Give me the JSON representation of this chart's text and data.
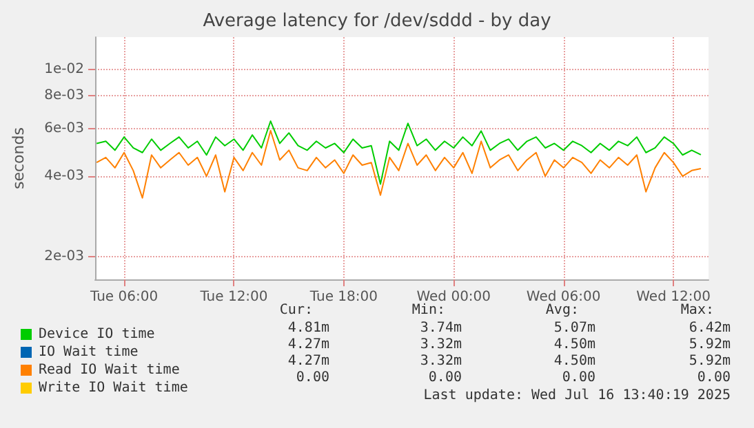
{
  "chart_data": {
    "type": "line",
    "title": "Average latency for /dev/sddd - by day",
    "ylabel": "seconds",
    "x": [
      "2025-07-15T04:30",
      "2025-07-15T05:00",
      "2025-07-15T05:30",
      "2025-07-15T06:00",
      "2025-07-15T06:30",
      "2025-07-15T07:00",
      "2025-07-15T07:30",
      "2025-07-15T08:00",
      "2025-07-15T08:30",
      "2025-07-15T09:00",
      "2025-07-15T09:30",
      "2025-07-15T10:00",
      "2025-07-15T10:30",
      "2025-07-15T11:00",
      "2025-07-15T11:30",
      "2025-07-15T12:00",
      "2025-07-15T12:30",
      "2025-07-15T13:00",
      "2025-07-15T13:30",
      "2025-07-15T14:00",
      "2025-07-15T14:30",
      "2025-07-15T15:00",
      "2025-07-15T15:30",
      "2025-07-15T16:00",
      "2025-07-15T16:30",
      "2025-07-15T17:00",
      "2025-07-15T17:30",
      "2025-07-15T18:00",
      "2025-07-15T18:30",
      "2025-07-15T19:00",
      "2025-07-15T19:30",
      "2025-07-15T20:00",
      "2025-07-15T20:30",
      "2025-07-15T21:00",
      "2025-07-15T21:30",
      "2025-07-15T22:00",
      "2025-07-15T22:30",
      "2025-07-15T23:00",
      "2025-07-15T23:30",
      "2025-07-16T00:00",
      "2025-07-16T00:30",
      "2025-07-16T01:00",
      "2025-07-16T01:30",
      "2025-07-16T02:00",
      "2025-07-16T02:30",
      "2025-07-16T03:00",
      "2025-07-16T03:30",
      "2025-07-16T04:00",
      "2025-07-16T04:30",
      "2025-07-16T05:00",
      "2025-07-16T05:30",
      "2025-07-16T06:00",
      "2025-07-16T06:30",
      "2025-07-16T07:00",
      "2025-07-16T07:30",
      "2025-07-16T08:00",
      "2025-07-16T08:30",
      "2025-07-16T09:00",
      "2025-07-16T09:30",
      "2025-07-16T10:00",
      "2025-07-16T10:30",
      "2025-07-16T11:00",
      "2025-07-16T11:30",
      "2025-07-16T12:00",
      "2025-07-16T12:30",
      "2025-07-16T13:00",
      "2025-07-16T13:30"
    ],
    "series": [
      {
        "name": "Device IO time",
        "color": "#00cc00",
        "values": [
          0.0053,
          0.0054,
          0.005,
          0.0056,
          0.0051,
          0.0049,
          0.0055,
          0.005,
          0.0053,
          0.0056,
          0.0051,
          0.0054,
          0.0048,
          0.0056,
          0.0052,
          0.0055,
          0.005,
          0.0057,
          0.0051,
          0.00642,
          0.0053,
          0.0058,
          0.0052,
          0.005,
          0.0054,
          0.0051,
          0.0053,
          0.0049,
          0.0055,
          0.0051,
          0.0052,
          0.00374,
          0.0054,
          0.005,
          0.0063,
          0.0052,
          0.0055,
          0.005,
          0.0054,
          0.0051,
          0.0056,
          0.0052,
          0.0059,
          0.005,
          0.0053,
          0.0055,
          0.005,
          0.0054,
          0.0056,
          0.0051,
          0.0053,
          0.005,
          0.0054,
          0.0052,
          0.0049,
          0.0053,
          0.005,
          0.0054,
          0.0052,
          0.0056,
          0.0049,
          0.0051,
          0.0056,
          0.0053,
          0.0048,
          0.005,
          0.00481
        ]
      },
      {
        "name": "IO Wait time",
        "color": "#0066b3",
        "values": [
          null,
          null,
          null,
          null,
          null,
          null,
          null,
          null,
          null,
          null,
          null,
          null,
          null,
          null,
          null,
          null,
          null,
          null,
          null,
          null,
          null,
          null,
          null,
          null,
          null,
          null,
          null,
          null,
          null,
          null,
          null,
          null,
          null,
          null,
          null,
          null,
          null,
          null,
          null,
          null,
          null,
          null,
          null,
          null,
          null,
          null,
          null,
          null,
          null,
          null,
          null,
          null,
          null,
          null,
          null,
          null,
          null,
          null,
          null,
          null,
          null,
          null,
          null,
          null,
          null,
          null,
          null
        ]
      },
      {
        "name": "Read IO Wait time",
        "color": "#ff8000",
        "values": [
          0.0045,
          0.0047,
          0.0043,
          0.0049,
          0.0042,
          0.00332,
          0.0048,
          0.0043,
          0.0046,
          0.0049,
          0.0044,
          0.0047,
          0.004,
          0.0048,
          0.0035,
          0.0047,
          0.0042,
          0.0049,
          0.0044,
          0.00592,
          0.0046,
          0.005,
          0.0043,
          0.0042,
          0.0047,
          0.0043,
          0.0046,
          0.0041,
          0.0048,
          0.0044,
          0.0045,
          0.0034,
          0.0047,
          0.0042,
          0.0053,
          0.0044,
          0.0048,
          0.0042,
          0.0047,
          0.0043,
          0.0049,
          0.0041,
          0.0054,
          0.0043,
          0.0046,
          0.0048,
          0.0042,
          0.0046,
          0.0049,
          0.004,
          0.0046,
          0.0043,
          0.0047,
          0.0045,
          0.0041,
          0.0046,
          0.0043,
          0.0047,
          0.0044,
          0.0048,
          0.0035,
          0.0043,
          0.0049,
          0.0045,
          0.004,
          0.0042,
          0.00427
        ]
      },
      {
        "name": "Write IO Wait time",
        "color": "#ffcc00",
        "values": [
          null,
          null,
          null,
          null,
          null,
          null,
          null,
          null,
          null,
          null,
          null,
          null,
          null,
          null,
          null,
          null,
          null,
          null,
          null,
          null,
          null,
          null,
          null,
          null,
          null,
          null,
          null,
          null,
          null,
          null,
          null,
          null,
          null,
          null,
          null,
          null,
          null,
          null,
          null,
          null,
          null,
          null,
          null,
          null,
          null,
          null,
          null,
          null,
          null,
          null,
          null,
          null,
          null,
          null,
          null,
          null,
          null,
          null,
          null,
          null,
          null,
          null,
          null,
          null,
          null,
          null,
          null
        ]
      }
    ],
    "xlim": [
      "2025-07-15T04:25",
      "2025-07-16T13:55"
    ],
    "xticks": [
      {
        "value": "2025-07-15T06:00",
        "label": "Tue 06:00"
      },
      {
        "value": "2025-07-15T12:00",
        "label": "Tue 12:00"
      },
      {
        "value": "2025-07-15T18:00",
        "label": "Tue 18:00"
      },
      {
        "value": "2025-07-16T00:00",
        "label": "Wed 00:00"
      },
      {
        "value": "2025-07-16T06:00",
        "label": "Wed 06:00"
      },
      {
        "value": "2025-07-16T12:00",
        "label": "Wed 12:00"
      }
    ],
    "ylim": [
      0.00165,
      0.0132
    ],
    "yticks": [
      {
        "value": 0.002,
        "label": "2e-03"
      },
      {
        "value": 0.004,
        "label": "4e-03"
      },
      {
        "value": 0.006,
        "label": "6e-03"
      },
      {
        "value": 0.008,
        "label": "8e-03"
      },
      {
        "value": 0.01,
        "label": "1e-02"
      }
    ],
    "log": "y",
    "grid": true,
    "legend": "bottom",
    "marker": "none",
    "line_style": "solid",
    "annotations": [
      "Cur:",
      "Min:",
      "Avg:",
      "Max:",
      "4.81m",
      "3.74m",
      "5.07m",
      "6.42m",
      "4.27m",
      "3.32m",
      "4.50m",
      "5.92m",
      "4.27m",
      "3.32m",
      "4.50m",
      "5.92m",
      "0.00",
      "0.00",
      "0.00",
      "0.00",
      "Last update: Wed Jul 16 13:40:19 2025"
    ]
  }
}
